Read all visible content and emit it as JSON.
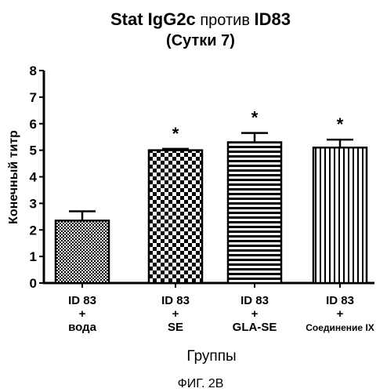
{
  "chart_data": {
    "type": "bar",
    "title_parts": [
      {
        "text": "Stat IgG2c",
        "style": "bold"
      },
      {
        "text": " против ",
        "style": "normal"
      },
      {
        "text": "ID83",
        "style": "bold"
      }
    ],
    "subtitle": "(Сутки 7)",
    "ylabel": "Конечный титр",
    "xlabel": "Группы",
    "ylim": [
      0,
      8
    ],
    "yticks": [
      0,
      1,
      2,
      3,
      4,
      5,
      6,
      7,
      8
    ],
    "categories": [
      {
        "lines": [
          "ID 83",
          "+",
          "вода"
        ]
      },
      {
        "lines": [
          "ID 83",
          "+",
          "SE"
        ]
      },
      {
        "lines": [
          "ID 83",
          "+",
          "GLA-SE"
        ]
      },
      {
        "lines": [
          "ID 83",
          "+",
          "Соединение IX"
        ]
      }
    ],
    "values": [
      2.35,
      5.0,
      5.3,
      5.1
    ],
    "errors": [
      0.35,
      0.05,
      0.35,
      0.3
    ],
    "significance": [
      "",
      "*",
      "*",
      "*"
    ],
    "patterns": [
      "dots",
      "checker",
      "horizontal-stripes",
      "vertical-stripes"
    ]
  },
  "caption": "ФИГ. 2В"
}
